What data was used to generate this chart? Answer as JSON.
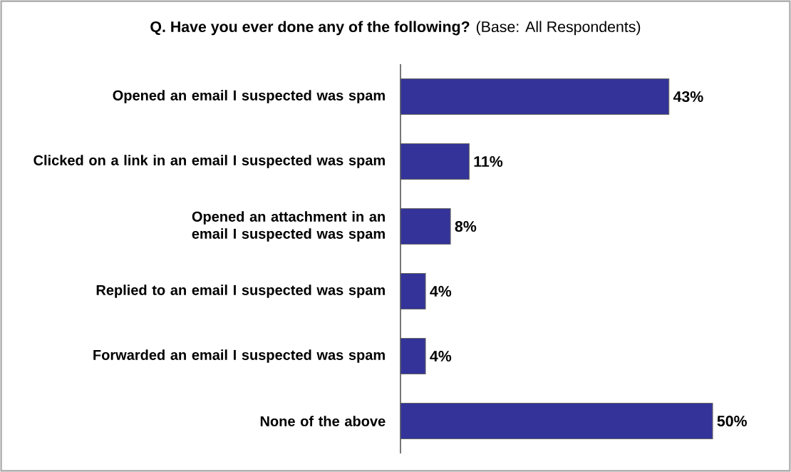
{
  "chart_data": {
    "type": "bar",
    "orientation": "horizontal",
    "title": "**Q. Have you ever done any of the following?** (Base: All Respondents)",
    "categories": [
      "Opened an email I suspected was spam",
      "Clicked on a link in an email I suspected was spam",
      "Opened an attachment in an email I suspected was spam",
      "Replied to an email I suspected was spam",
      "Forwarded an email I suspected was spam",
      "None of the above"
    ],
    "values": [
      43,
      11,
      8,
      4,
      4,
      50
    ],
    "value_labels": [
      "43%",
      "11%",
      "8%",
      "4%",
      "4%",
      "50%"
    ],
    "color": "#333399"
  }
}
